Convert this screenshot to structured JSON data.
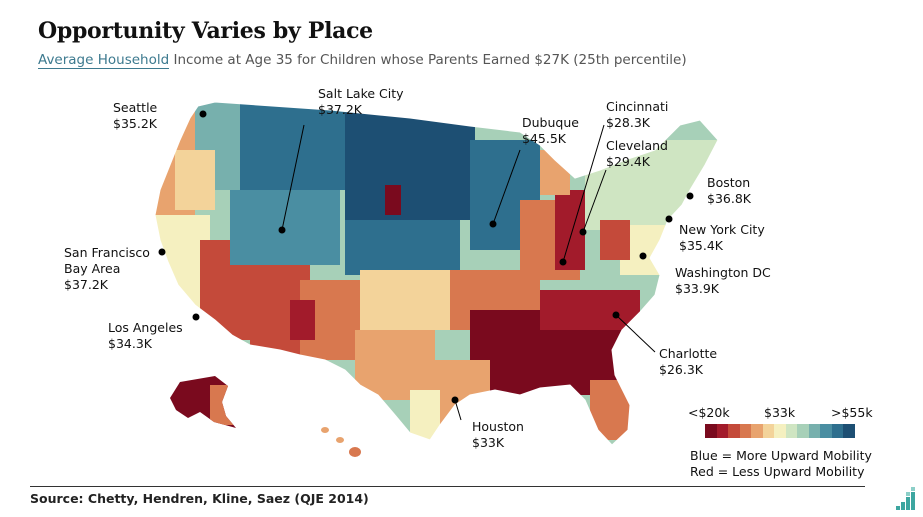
{
  "title": "Opportunity Varies by Place",
  "subtitle_underlined": "Average Household",
  "subtitle_rest": " Income at Age 35 for Children whose Parents Earned $27K (25th percentile)",
  "cities": [
    {
      "name": "Seattle",
      "value": "$35.2K"
    },
    {
      "name": "Salt Lake City",
      "value": "$37.2K"
    },
    {
      "name": "Dubuque",
      "value": "$45.5K"
    },
    {
      "name": "Cincinnati",
      "value": "$28.3K"
    },
    {
      "name": "Cleveland",
      "value": "$29.4K"
    },
    {
      "name": "Boston",
      "value": "$36.8K"
    },
    {
      "name": "New York City",
      "value": "$35.4K"
    },
    {
      "name": "Washington DC",
      "value": "$33.9K"
    },
    {
      "name": "San Francisco",
      "name2": "Bay Area",
      "value": "$37.2K"
    },
    {
      "name": "Los Angeles",
      "value": "$34.3K"
    },
    {
      "name": "Charlotte",
      "value": "$26.3K"
    },
    {
      "name": "Houston",
      "value": "$33K"
    }
  ],
  "legend": {
    "low": "<$20k",
    "mid": "$33k",
    "high": ">$55k",
    "colors": [
      "#7a0a1e",
      "#a21b2b",
      "#c44a3a",
      "#d8784f",
      "#e8a36e",
      "#f3d39a",
      "#f5f0c0",
      "#cfe5c2",
      "#a7d0b8",
      "#77b0ad",
      "#4a8ea2",
      "#2e6f8e",
      "#1d4f73"
    ],
    "note_blue": "Blue = More Upward Mobility",
    "note_red": "Red = Less Upward Mobility"
  },
  "source": "Source: Chetty, Hendren, Kline, Saez (QJE 2014)",
  "logo_icon": "bar-logo-icon"
}
